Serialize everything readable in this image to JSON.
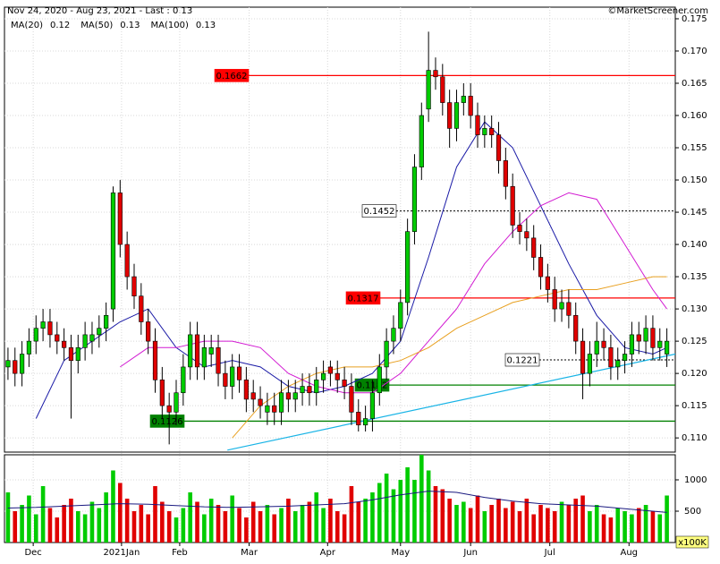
{
  "chart_data": {
    "type": "candlestick",
    "title": "Nov 24, 2020 - Aug 23, 2021 - Last : 0.13",
    "source": "©MarketScreener.com",
    "xlim": [
      -0.5,
      95.2
    ],
    "xticks": [
      {
        "value": 3.6,
        "label": "Dec"
      },
      {
        "value": 16.2,
        "label": "2021Jan"
      },
      {
        "value": 24.5,
        "label": "Feb"
      },
      {
        "value": 34.4,
        "label": "Mar"
      },
      {
        "value": 45.6,
        "label": "Apr"
      },
      {
        "value": 56,
        "label": "May"
      },
      {
        "value": 66,
        "label": "Jun"
      },
      {
        "value": 77.3,
        "label": "Jul"
      },
      {
        "value": 88.6,
        "label": "Aug"
      }
    ],
    "ylim": [
      0.1078,
      0.1768
    ],
    "yticks": [
      {
        "value": 0.11,
        "label": "0.110"
      },
      0.115,
      {
        "value": 0.12,
        "label": "0.120"
      },
      0.125,
      {
        "value": 0.13,
        "label": "0.130"
      },
      0.135,
      {
        "value": 0.14,
        "label": "0.140"
      },
      0.145,
      {
        "value": 0.15,
        "label": "0.150"
      },
      0.155,
      {
        "value": 0.16,
        "label": "0.160"
      },
      0.165,
      {
        "value": 0.17,
        "label": "0.170"
      },
      0.175
    ],
    "grid": true,
    "up_color": "#00cc00",
    "down_color": "#e00000",
    "open": [
      0.121,
      0.122,
      0.12,
      0.123,
      0.125,
      0.127,
      0.128,
      0.126,
      0.125,
      0.124,
      0.122,
      0.124,
      0.125,
      0.126,
      0.127,
      0.13,
      0.148,
      0.14,
      0.135,
      0.132,
      0.128,
      0.125,
      0.119,
      0.115,
      0.114,
      0.117,
      0.121,
      0.126,
      0.121,
      0.123,
      0.124,
      0.12,
      0.118,
      0.121,
      0.119,
      0.117,
      0.116,
      0.114,
      0.115,
      0.114,
      0.117,
      0.116,
      0.117,
      0.118,
      0.117,
      0.119,
      0.121,
      0.12,
      0.119,
      0.118,
      0.114,
      0.112,
      0.113,
      0.117,
      0.121,
      0.125,
      0.127,
      0.131,
      0.142,
      0.152,
      0.161,
      0.167,
      0.166,
      0.162,
      0.158,
      0.162,
      0.163,
      0.16,
      0.157,
      0.158,
      0.157,
      0.153,
      0.149,
      0.143,
      0.142,
      0.141,
      0.138,
      0.135,
      0.133,
      0.13,
      0.131,
      0.129,
      0.125,
      0.12,
      0.123,
      0.125,
      0.124,
      0.121,
      0.122,
      0.123,
      0.126,
      0.125,
      0.127,
      0.124,
      0.123
    ],
    "high": [
      0.124,
      0.124,
      0.125,
      0.127,
      0.129,
      0.13,
      0.13,
      0.128,
      0.127,
      0.126,
      0.126,
      0.128,
      0.128,
      0.129,
      0.131,
      0.149,
      0.15,
      0.142,
      0.137,
      0.134,
      0.13,
      0.127,
      0.121,
      0.117,
      0.119,
      0.123,
      0.128,
      0.128,
      0.126,
      0.126,
      0.126,
      0.122,
      0.123,
      0.123,
      0.121,
      0.119,
      0.118,
      0.117,
      0.117,
      0.119,
      0.119,
      0.119,
      0.12,
      0.12,
      0.121,
      0.122,
      0.122,
      0.122,
      0.121,
      0.12,
      0.116,
      0.115,
      0.119,
      0.123,
      0.127,
      0.129,
      0.133,
      0.144,
      0.154,
      0.162,
      0.173,
      0.169,
      0.168,
      0.164,
      0.164,
      0.165,
      0.165,
      0.162,
      0.16,
      0.16,
      0.159,
      0.155,
      0.151,
      0.145,
      0.144,
      0.143,
      0.14,
      0.137,
      0.135,
      0.133,
      0.133,
      0.131,
      0.127,
      0.125,
      0.128,
      0.127,
      0.126,
      0.124,
      0.125,
      0.128,
      0.128,
      0.129,
      0.129,
      0.127,
      0.127
    ],
    "low": [
      0.119,
      0.118,
      0.118,
      0.121,
      0.123,
      0.125,
      0.124,
      0.123,
      0.122,
      0.113,
      0.12,
      0.122,
      0.123,
      0.124,
      0.125,
      0.128,
      0.138,
      0.133,
      0.13,
      0.126,
      0.123,
      0.117,
      0.113,
      0.109,
      0.112,
      0.115,
      0.119,
      0.119,
      0.119,
      0.121,
      0.118,
      0.116,
      0.116,
      0.117,
      0.114,
      0.114,
      0.113,
      0.112,
      0.112,
      0.112,
      0.114,
      0.114,
      0.115,
      0.115,
      0.115,
      0.117,
      0.118,
      0.117,
      0.116,
      0.112,
      0.111,
      0.111,
      0.111,
      0.115,
      0.119,
      0.123,
      0.125,
      0.129,
      0.14,
      0.15,
      0.159,
      0.164,
      0.16,
      0.155,
      0.156,
      0.16,
      0.158,
      0.155,
      0.155,
      0.155,
      0.151,
      0.147,
      0.141,
      0.14,
      0.139,
      0.136,
      0.133,
      0.131,
      0.128,
      0.128,
      0.127,
      0.123,
      0.116,
      0.118,
      0.121,
      0.122,
      0.119,
      0.119,
      0.12,
      0.121,
      0.123,
      0.123,
      0.122,
      0.122,
      0.121
    ],
    "close": [
      0.122,
      0.12,
      0.123,
      0.125,
      0.127,
      0.128,
      0.126,
      0.125,
      0.124,
      0.122,
      0.124,
      0.126,
      0.126,
      0.127,
      0.129,
      0.148,
      0.14,
      0.135,
      0.132,
      0.128,
      0.125,
      0.119,
      0.115,
      0.114,
      0.117,
      0.121,
      0.126,
      0.121,
      0.124,
      0.124,
      0.12,
      0.118,
      0.121,
      0.119,
      0.116,
      0.116,
      0.115,
      0.115,
      0.114,
      0.117,
      0.116,
      0.117,
      0.118,
      0.117,
      0.119,
      0.12,
      0.12,
      0.119,
      0.118,
      0.114,
      0.112,
      0.113,
      0.117,
      0.121,
      0.125,
      0.127,
      0.131,
      0.142,
      0.152,
      0.16,
      0.167,
      0.166,
      0.162,
      0.158,
      0.162,
      0.163,
      0.16,
      0.157,
      0.158,
      0.157,
      0.153,
      0.149,
      0.143,
      0.142,
      0.141,
      0.138,
      0.135,
      0.133,
      0.13,
      0.131,
      0.129,
      0.125,
      0.12,
      0.123,
      0.125,
      0.124,
      0.121,
      0.122,
      0.123,
      0.126,
      0.125,
      0.127,
      0.124,
      0.125,
      0.125
    ],
    "ma_x": [
      0,
      4,
      8,
      12,
      16,
      20,
      24,
      28,
      32,
      36,
      40,
      44,
      48,
      52,
      56,
      60,
      64,
      68,
      72,
      76,
      80,
      84,
      88,
      92,
      94
    ],
    "series": [
      {
        "name": "MA(20)",
        "last": 0.12,
        "color": "#1a1aa6",
        "values": [
          null,
          0.113,
          0.122,
          0.125,
          0.128,
          0.13,
          0.124,
          0.121,
          0.122,
          0.121,
          0.118,
          0.117,
          0.118,
          0.12,
          0.125,
          0.138,
          0.152,
          0.159,
          0.155,
          0.146,
          0.137,
          0.129,
          0.124,
          0.123,
          0.124
        ]
      },
      {
        "name": "MA(50)",
        "last": 0.13,
        "color": "#d21bd2",
        "values": [
          null,
          null,
          null,
          null,
          0.121,
          0.124,
          0.124,
          0.125,
          0.125,
          0.124,
          0.12,
          0.118,
          0.117,
          0.117,
          0.12,
          0.125,
          0.13,
          0.137,
          0.142,
          0.146,
          0.148,
          0.147,
          0.14,
          0.133,
          0.13
        ]
      },
      {
        "name": "MA(100)",
        "last": 0.13,
        "color": "#e8a020",
        "values": [
          null,
          null,
          null,
          null,
          null,
          null,
          null,
          null,
          0.11,
          0.115,
          0.118,
          0.12,
          0.121,
          0.121,
          0.122,
          0.124,
          0.127,
          0.129,
          0.131,
          0.132,
          0.133,
          0.133,
          0.134,
          0.135,
          0.135
        ]
      }
    ],
    "levels": [
      {
        "value": 0.1662,
        "color": "#ff0000",
        "style": "solid",
        "box": "#ff0000"
      },
      {
        "value": 0.1452,
        "color": "#000000",
        "style": "dashed",
        "box": "#ffffff"
      },
      {
        "value": 0.1317,
        "color": "#ff0000",
        "style": "solid",
        "box": "#ff0000"
      },
      {
        "value": 0.1221,
        "color": "#000000",
        "style": "dashed",
        "box": "#ffffff"
      },
      {
        "value": 0.1182,
        "color": "#008000",
        "style": "solid",
        "box": "#008000"
      },
      {
        "value": 0.1126,
        "color": "#008000",
        "style": "solid",
        "box": "#008000"
      }
    ],
    "trendline": {
      "color": "#19b4e6",
      "x": [
        31.3,
        95.2
      ],
      "y": [
        0.1081,
        0.123
      ]
    },
    "volume": {
      "unit": "x100K",
      "ylim": [
        0,
        1400
      ],
      "yticks": [
        500,
        1000
      ],
      "values": [
        800,
        500,
        600,
        750,
        450,
        900,
        550,
        400,
        600,
        700,
        500,
        450,
        650,
        550,
        800,
        1150,
        950,
        700,
        500,
        600,
        450,
        900,
        650,
        500,
        400,
        550,
        800,
        650,
        450,
        700,
        600,
        500,
        750,
        550,
        400,
        650,
        500,
        600,
        450,
        550,
        700,
        500,
        600,
        650,
        800,
        550,
        700,
        500,
        450,
        900,
        650,
        700,
        800,
        950,
        1100,
        850,
        1000,
        1200,
        1000,
        1400,
        1150,
        900,
        850,
        700,
        600,
        650,
        550,
        750,
        500,
        600,
        700,
        550,
        650,
        500,
        700,
        450,
        600,
        550,
        500,
        650,
        600,
        700,
        750,
        500,
        600,
        450,
        400,
        550,
        500,
        450,
        550,
        600,
        500,
        450,
        750
      ],
      "ma": {
        "color": "#1a1a80",
        "values": [
          550,
          560,
          580,
          600,
          620,
          610,
          590,
          570,
          560,
          570,
          580,
          600,
          620,
          680,
          760,
          820,
          800,
          720,
          660,
          620,
          600,
          580,
          540,
          500,
          480
        ]
      }
    }
  }
}
